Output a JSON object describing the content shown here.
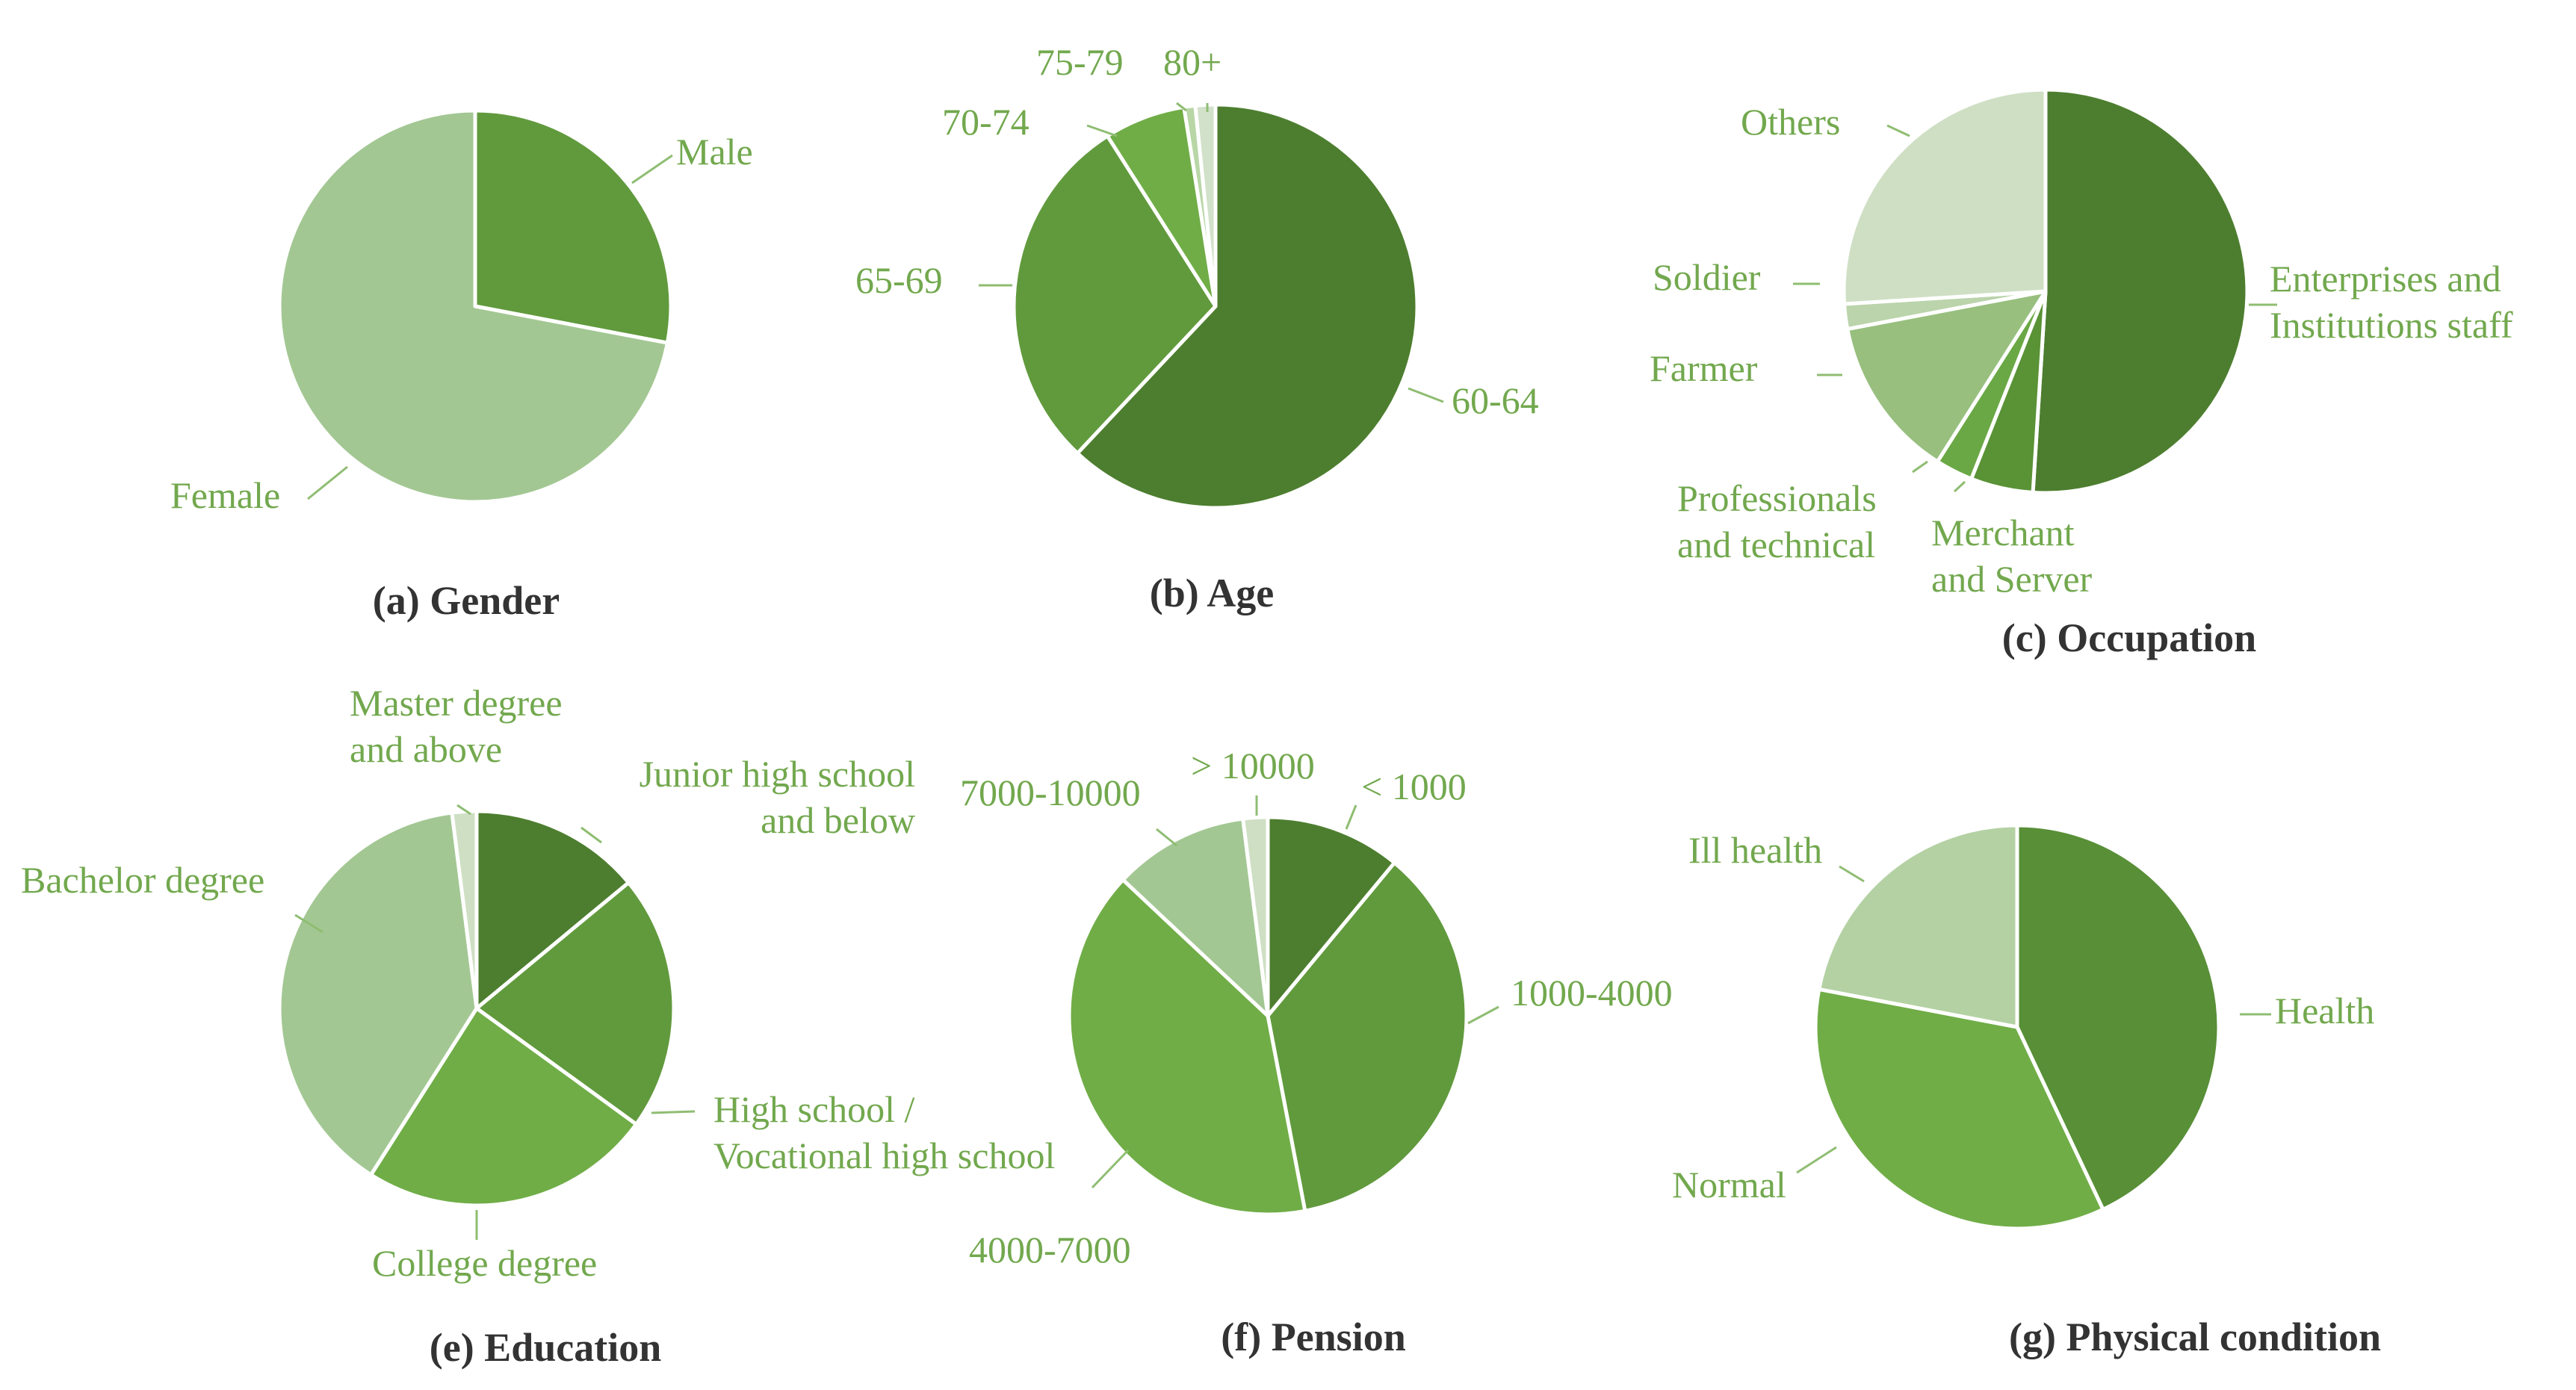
{
  "chart_data": [
    {
      "type": "pie",
      "title": "(a) Gender",
      "categories": [
        "Male",
        "Female"
      ],
      "values": [
        28,
        72
      ],
      "colors": [
        "#619a3d",
        "#a3c793"
      ]
    },
    {
      "type": "pie",
      "title": "(b) Age",
      "categories": [
        "60-64",
        "65-69",
        "70-74",
        "75-79",
        "80+"
      ],
      "values": [
        62,
        29,
        6.5,
        0.9,
        1.6
      ],
      "colors": [
        "#4d7e2f",
        "#619a3d",
        "#70ad47",
        "#b8d6a6",
        "#d2e1c9"
      ]
    },
    {
      "type": "pie",
      "title": "(c) Occupation",
      "categories": [
        "Enterprises and Institutions staff",
        "Merchant and Server",
        "Professionals and technical",
        "Farmer",
        "Soldier",
        "Others"
      ],
      "values": [
        51,
        5,
        3,
        13,
        2,
        26
      ],
      "colors": [
        "#4d7e2f",
        "#5a9236",
        "#6aa845",
        "#98bf7e",
        "#bbd4ab",
        "#cfdfc4"
      ]
    },
    {
      "type": "pie",
      "title": "(e) Education",
      "categories": [
        "Junior high school and below",
        "High school / Vocational high school",
        "College degree",
        "Bachelor degree",
        "Master degree and above"
      ],
      "values": [
        14,
        21,
        24,
        39,
        2
      ],
      "colors": [
        "#4d7e2f",
        "#619a3d",
        "#70ad47",
        "#a3c793",
        "#cfdfc4"
      ]
    },
    {
      "type": "pie",
      "title": "(f) Pension",
      "categories": [
        "< 1000",
        "1000-4000",
        "4000-7000",
        "7000-10000",
        "> 10000"
      ],
      "values": [
        11,
        36,
        40,
        11,
        2
      ],
      "colors": [
        "#4d7e2f",
        "#619a3d",
        "#70ad47",
        "#a3c793",
        "#cfdfc4"
      ]
    },
    {
      "type": "pie",
      "title": "(g) Physical condition",
      "categories": [
        "Health",
        "Normal",
        "Ill health"
      ],
      "values": [
        43,
        35,
        22
      ],
      "colors": [
        "#588f37",
        "#70ad47",
        "#b4d1a3"
      ]
    }
  ],
  "slice_labels": [
    [
      {
        "lines": [
          "Male"
        ]
      },
      {
        "lines": [
          "Female"
        ]
      }
    ],
    [
      {
        "lines": [
          "60-64"
        ]
      },
      {
        "lines": [
          "65-69"
        ]
      },
      {
        "lines": [
          "70-74"
        ]
      },
      {
        "lines": [
          "75-79"
        ]
      },
      {
        "lines": [
          "80+"
        ]
      }
    ],
    [
      {
        "lines": [
          "Enterprises and",
          "Institutions staff"
        ]
      },
      {
        "lines": [
          "Merchant",
          "and Server"
        ]
      },
      {
        "lines": [
          "Professionals",
          "and technical"
        ]
      },
      {
        "lines": [
          "Farmer"
        ]
      },
      {
        "lines": [
          "Soldier"
        ]
      },
      {
        "lines": [
          "Others"
        ]
      }
    ],
    [
      {
        "lines": [
          "Junior high school",
          "and below"
        ]
      },
      {
        "lines": [
          "High school /",
          "Vocational high school"
        ]
      },
      {
        "lines": [
          "College degree"
        ]
      },
      {
        "lines": [
          "Bachelor degree"
        ]
      },
      {
        "lines": [
          "Master degree",
          "and above"
        ]
      }
    ],
    [
      {
        "lines": [
          "< 1000"
        ]
      },
      {
        "lines": [
          "1000-4000"
        ]
      },
      {
        "lines": [
          "4000-7000"
        ]
      },
      {
        "lines": [
          "7000-10000"
        ]
      },
      {
        "lines": [
          "> 10000"
        ]
      }
    ],
    [
      {
        "lines": [
          "Health"
        ]
      },
      {
        "lines": [
          "Normal"
        ]
      },
      {
        "lines": [
          "Ill health"
        ]
      }
    ]
  ]
}
